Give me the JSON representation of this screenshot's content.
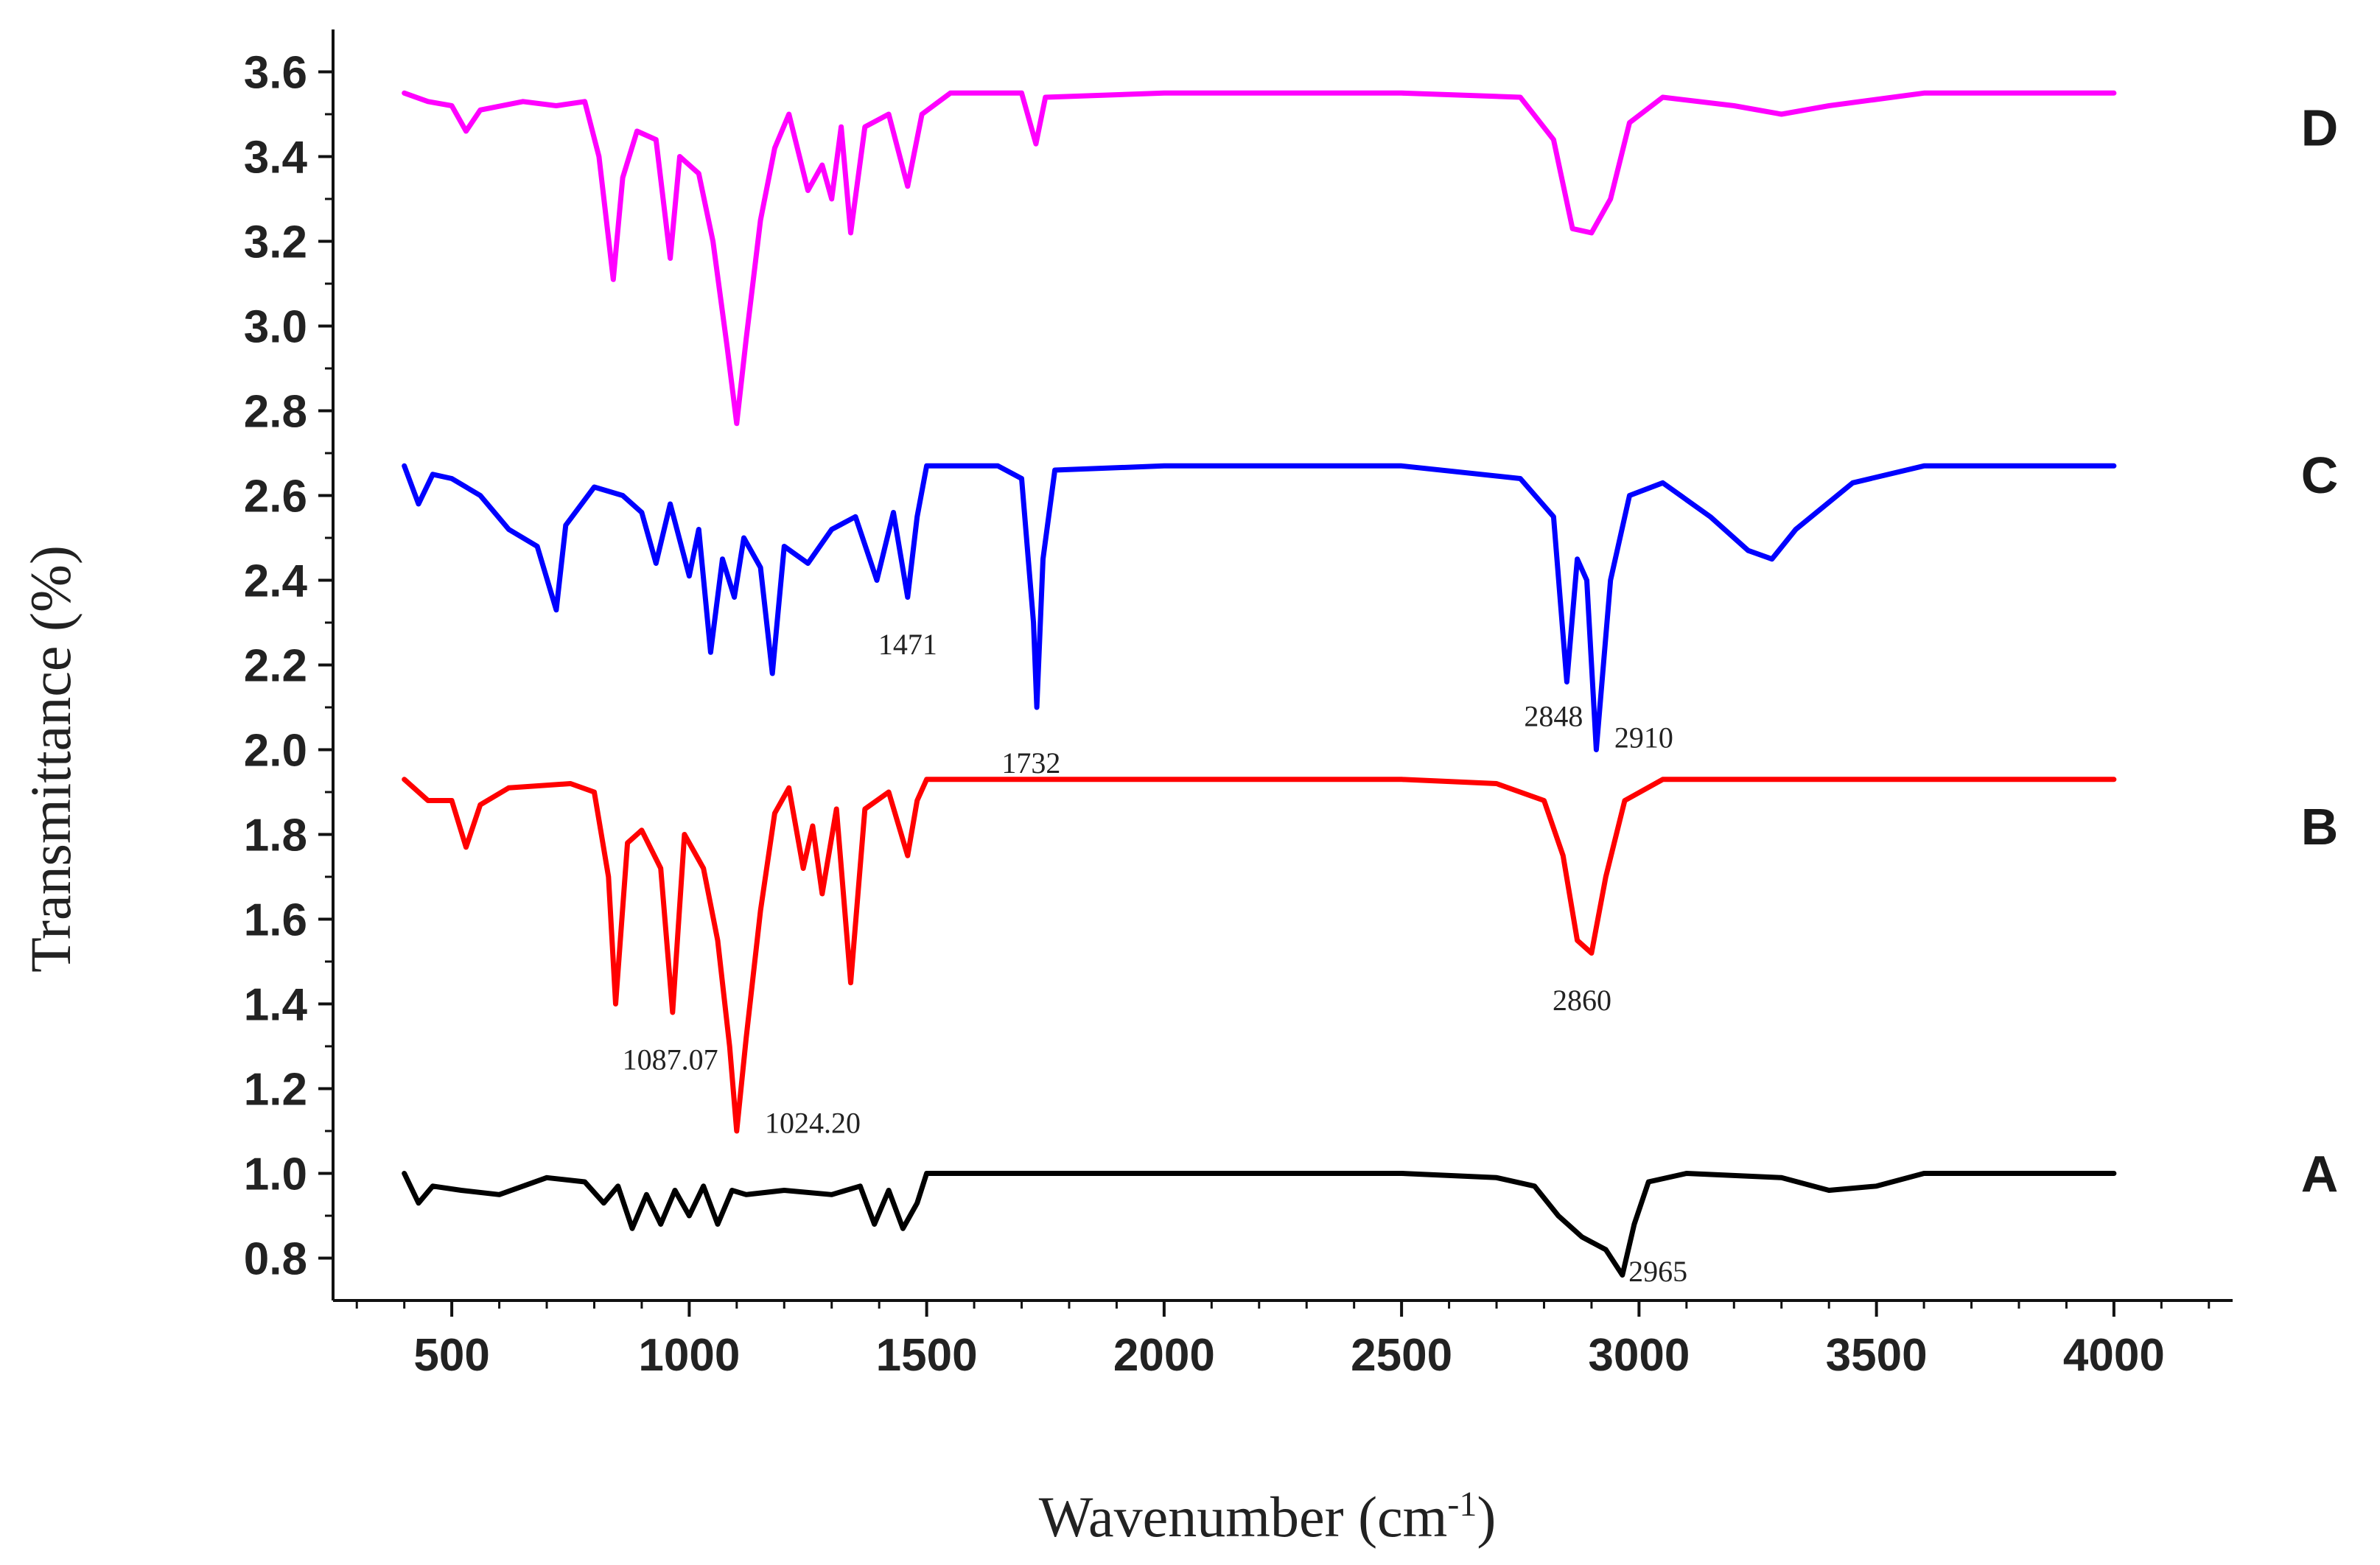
{
  "chart_data": {
    "type": "line",
    "title": "",
    "xlabel": "Wavenumber (cm",
    "xlabel_sup": "-1",
    "xlabel_close": ")",
    "ylabel": "Transmittance (%)",
    "xlim": [
      250,
      4250
    ],
    "ylim": [
      0.7,
      3.7
    ],
    "x_ticks": [
      500,
      1000,
      1500,
      2000,
      2500,
      3000,
      3500,
      4000
    ],
    "x_tick_labels": [
      "500",
      "1000",
      "1500",
      "2000",
      "2500",
      "3000",
      "3500",
      "4000"
    ],
    "y_ticks": [
      0.8,
      1.0,
      1.2,
      1.4,
      1.6,
      1.8,
      2.0,
      2.2,
      2.4,
      2.6,
      2.8,
      3.0,
      3.2,
      3.4,
      3.6
    ],
    "y_tick_labels": [
      "0.8",
      "1.0",
      "1.2",
      "1.4",
      "1.6",
      "1.8",
      "2.0",
      "2.2",
      "2.4",
      "2.6",
      "2.8",
      "3.0",
      "3.2",
      "3.4",
      "3.6"
    ],
    "series": [
      {
        "name": "A",
        "color": "#000000",
        "baseline": 1.0,
        "points": [
          [
            400,
            1.0
          ],
          [
            430,
            0.93
          ],
          [
            460,
            0.97
          ],
          [
            520,
            0.96
          ],
          [
            600,
            0.95
          ],
          [
            700,
            0.99
          ],
          [
            780,
            0.98
          ],
          [
            820,
            0.93
          ],
          [
            850,
            0.97
          ],
          [
            880,
            0.87
          ],
          [
            910,
            0.95
          ],
          [
            940,
            0.88
          ],
          [
            970,
            0.96
          ],
          [
            1000,
            0.9
          ],
          [
            1030,
            0.97
          ],
          [
            1060,
            0.88
          ],
          [
            1090,
            0.96
          ],
          [
            1120,
            0.95
          ],
          [
            1200,
            0.96
          ],
          [
            1300,
            0.95
          ],
          [
            1360,
            0.97
          ],
          [
            1390,
            0.88
          ],
          [
            1420,
            0.96
          ],
          [
            1450,
            0.87
          ],
          [
            1480,
            0.93
          ],
          [
            1500,
            1.0
          ],
          [
            1600,
            1.0
          ],
          [
            2000,
            1.0
          ],
          [
            2500,
            1.0
          ],
          [
            2700,
            0.99
          ],
          [
            2780,
            0.97
          ],
          [
            2830,
            0.9
          ],
          [
            2880,
            0.85
          ],
          [
            2930,
            0.82
          ],
          [
            2965,
            0.76
          ],
          [
            2990,
            0.88
          ],
          [
            3020,
            0.98
          ],
          [
            3100,
            1.0
          ],
          [
            3300,
            0.99
          ],
          [
            3400,
            0.96
          ],
          [
            3500,
            0.97
          ],
          [
            3600,
            1.0
          ],
          [
            4000,
            1.0
          ]
        ]
      },
      {
        "name": "B",
        "color": "#ff0000",
        "baseline": 1.93,
        "points": [
          [
            400,
            1.93
          ],
          [
            450,
            1.88
          ],
          [
            500,
            1.88
          ],
          [
            530,
            1.77
          ],
          [
            560,
            1.87
          ],
          [
            620,
            1.91
          ],
          [
            750,
            1.92
          ],
          [
            800,
            1.9
          ],
          [
            830,
            1.7
          ],
          [
            845,
            1.4
          ],
          [
            870,
            1.78
          ],
          [
            900,
            1.81
          ],
          [
            940,
            1.72
          ],
          [
            965,
            1.38
          ],
          [
            990,
            1.8
          ],
          [
            1030,
            1.72
          ],
          [
            1060,
            1.55
          ],
          [
            1085,
            1.3
          ],
          [
            1100,
            1.1
          ],
          [
            1120,
            1.32
          ],
          [
            1150,
            1.62
          ],
          [
            1180,
            1.85
          ],
          [
            1210,
            1.91
          ],
          [
            1240,
            1.72
          ],
          [
            1260,
            1.82
          ],
          [
            1280,
            1.66
          ],
          [
            1310,
            1.86
          ],
          [
            1340,
            1.45
          ],
          [
            1370,
            1.86
          ],
          [
            1420,
            1.9
          ],
          [
            1460,
            1.75
          ],
          [
            1480,
            1.88
          ],
          [
            1500,
            1.93
          ],
          [
            2000,
            1.93
          ],
          [
            2500,
            1.93
          ],
          [
            2700,
            1.92
          ],
          [
            2800,
            1.88
          ],
          [
            2840,
            1.75
          ],
          [
            2870,
            1.55
          ],
          [
            2900,
            1.52
          ],
          [
            2930,
            1.7
          ],
          [
            2970,
            1.88
          ],
          [
            3050,
            1.93
          ],
          [
            4000,
            1.93
          ]
        ]
      },
      {
        "name": "C",
        "color": "#0000ff",
        "baseline": 2.67,
        "points": [
          [
            400,
            2.67
          ],
          [
            430,
            2.58
          ],
          [
            460,
            2.65
          ],
          [
            500,
            2.64
          ],
          [
            560,
            2.6
          ],
          [
            620,
            2.52
          ],
          [
            680,
            2.48
          ],
          [
            720,
            2.33
          ],
          [
            740,
            2.53
          ],
          [
            800,
            2.62
          ],
          [
            860,
            2.6
          ],
          [
            900,
            2.56
          ],
          [
            930,
            2.44
          ],
          [
            960,
            2.58
          ],
          [
            1000,
            2.41
          ],
          [
            1020,
            2.52
          ],
          [
            1045,
            2.23
          ],
          [
            1070,
            2.45
          ],
          [
            1095,
            2.36
          ],
          [
            1115,
            2.5
          ],
          [
            1150,
            2.43
          ],
          [
            1175,
            2.18
          ],
          [
            1200,
            2.48
          ],
          [
            1250,
            2.44
          ],
          [
            1300,
            2.52
          ],
          [
            1350,
            2.55
          ],
          [
            1395,
            2.4
          ],
          [
            1430,
            2.56
          ],
          [
            1460,
            2.36
          ],
          [
            1480,
            2.55
          ],
          [
            1500,
            2.67
          ],
          [
            1650,
            2.67
          ],
          [
            1700,
            2.64
          ],
          [
            1725,
            2.3
          ],
          [
            1732,
            2.1
          ],
          [
            1745,
            2.45
          ],
          [
            1770,
            2.66
          ],
          [
            2000,
            2.67
          ],
          [
            2500,
            2.67
          ],
          [
            2750,
            2.64
          ],
          [
            2820,
            2.55
          ],
          [
            2848,
            2.16
          ],
          [
            2870,
            2.45
          ],
          [
            2890,
            2.4
          ],
          [
            2910,
            2.0
          ],
          [
            2940,
            2.4
          ],
          [
            2980,
            2.6
          ],
          [
            3050,
            2.63
          ],
          [
            3150,
            2.55
          ],
          [
            3230,
            2.47
          ],
          [
            3280,
            2.45
          ],
          [
            3330,
            2.52
          ],
          [
            3450,
            2.63
          ],
          [
            3600,
            2.67
          ],
          [
            4000,
            2.67
          ]
        ]
      },
      {
        "name": "D",
        "color": "#ff00ff",
        "baseline": 3.55,
        "points": [
          [
            400,
            3.55
          ],
          [
            450,
            3.53
          ],
          [
            500,
            3.52
          ],
          [
            530,
            3.46
          ],
          [
            560,
            3.51
          ],
          [
            650,
            3.53
          ],
          [
            720,
            3.52
          ],
          [
            780,
            3.53
          ],
          [
            810,
            3.4
          ],
          [
            840,
            3.11
          ],
          [
            860,
            3.35
          ],
          [
            890,
            3.46
          ],
          [
            930,
            3.44
          ],
          [
            960,
            3.16
          ],
          [
            980,
            3.4
          ],
          [
            1020,
            3.36
          ],
          [
            1050,
            3.2
          ],
          [
            1080,
            2.95
          ],
          [
            1100,
            2.77
          ],
          [
            1120,
            2.97
          ],
          [
            1150,
            3.25
          ],
          [
            1180,
            3.42
          ],
          [
            1210,
            3.5
          ],
          [
            1250,
            3.32
          ],
          [
            1280,
            3.38
          ],
          [
            1300,
            3.3
          ],
          [
            1320,
            3.47
          ],
          [
            1340,
            3.22
          ],
          [
            1370,
            3.47
          ],
          [
            1420,
            3.5
          ],
          [
            1460,
            3.33
          ],
          [
            1490,
            3.5
          ],
          [
            1550,
            3.55
          ],
          [
            1700,
            3.55
          ],
          [
            1730,
            3.43
          ],
          [
            1750,
            3.54
          ],
          [
            2000,
            3.55
          ],
          [
            2500,
            3.55
          ],
          [
            2750,
            3.54
          ],
          [
            2820,
            3.44
          ],
          [
            2860,
            3.23
          ],
          [
            2900,
            3.22
          ],
          [
            2940,
            3.3
          ],
          [
            2980,
            3.48
          ],
          [
            3050,
            3.54
          ],
          [
            3200,
            3.52
          ],
          [
            3300,
            3.5
          ],
          [
            3400,
            3.52
          ],
          [
            3600,
            3.55
          ],
          [
            4000,
            3.55
          ]
        ]
      }
    ],
    "series_labels": [
      {
        "text": "A",
        "y": 1.0
      },
      {
        "text": "B",
        "y": 1.82
      },
      {
        "text": "C",
        "y": 2.65
      },
      {
        "text": "D",
        "y": 3.47
      }
    ],
    "annotations": [
      {
        "text": "1087.07",
        "x": 960,
        "y": 1.27
      },
      {
        "text": "1024.20",
        "x": 1260,
        "y": 1.12
      },
      {
        "text": "1471",
        "x": 1460,
        "y": 2.25
      },
      {
        "text": "1732",
        "x": 1720,
        "y": 1.97
      },
      {
        "text": "2848",
        "x": 2820,
        "y": 2.08
      },
      {
        "text": "2910",
        "x": 3010,
        "y": 2.03
      },
      {
        "text": "2860",
        "x": 2880,
        "y": 1.41
      },
      {
        "text": "2965",
        "x": 3040,
        "y": 0.77
      }
    ]
  }
}
